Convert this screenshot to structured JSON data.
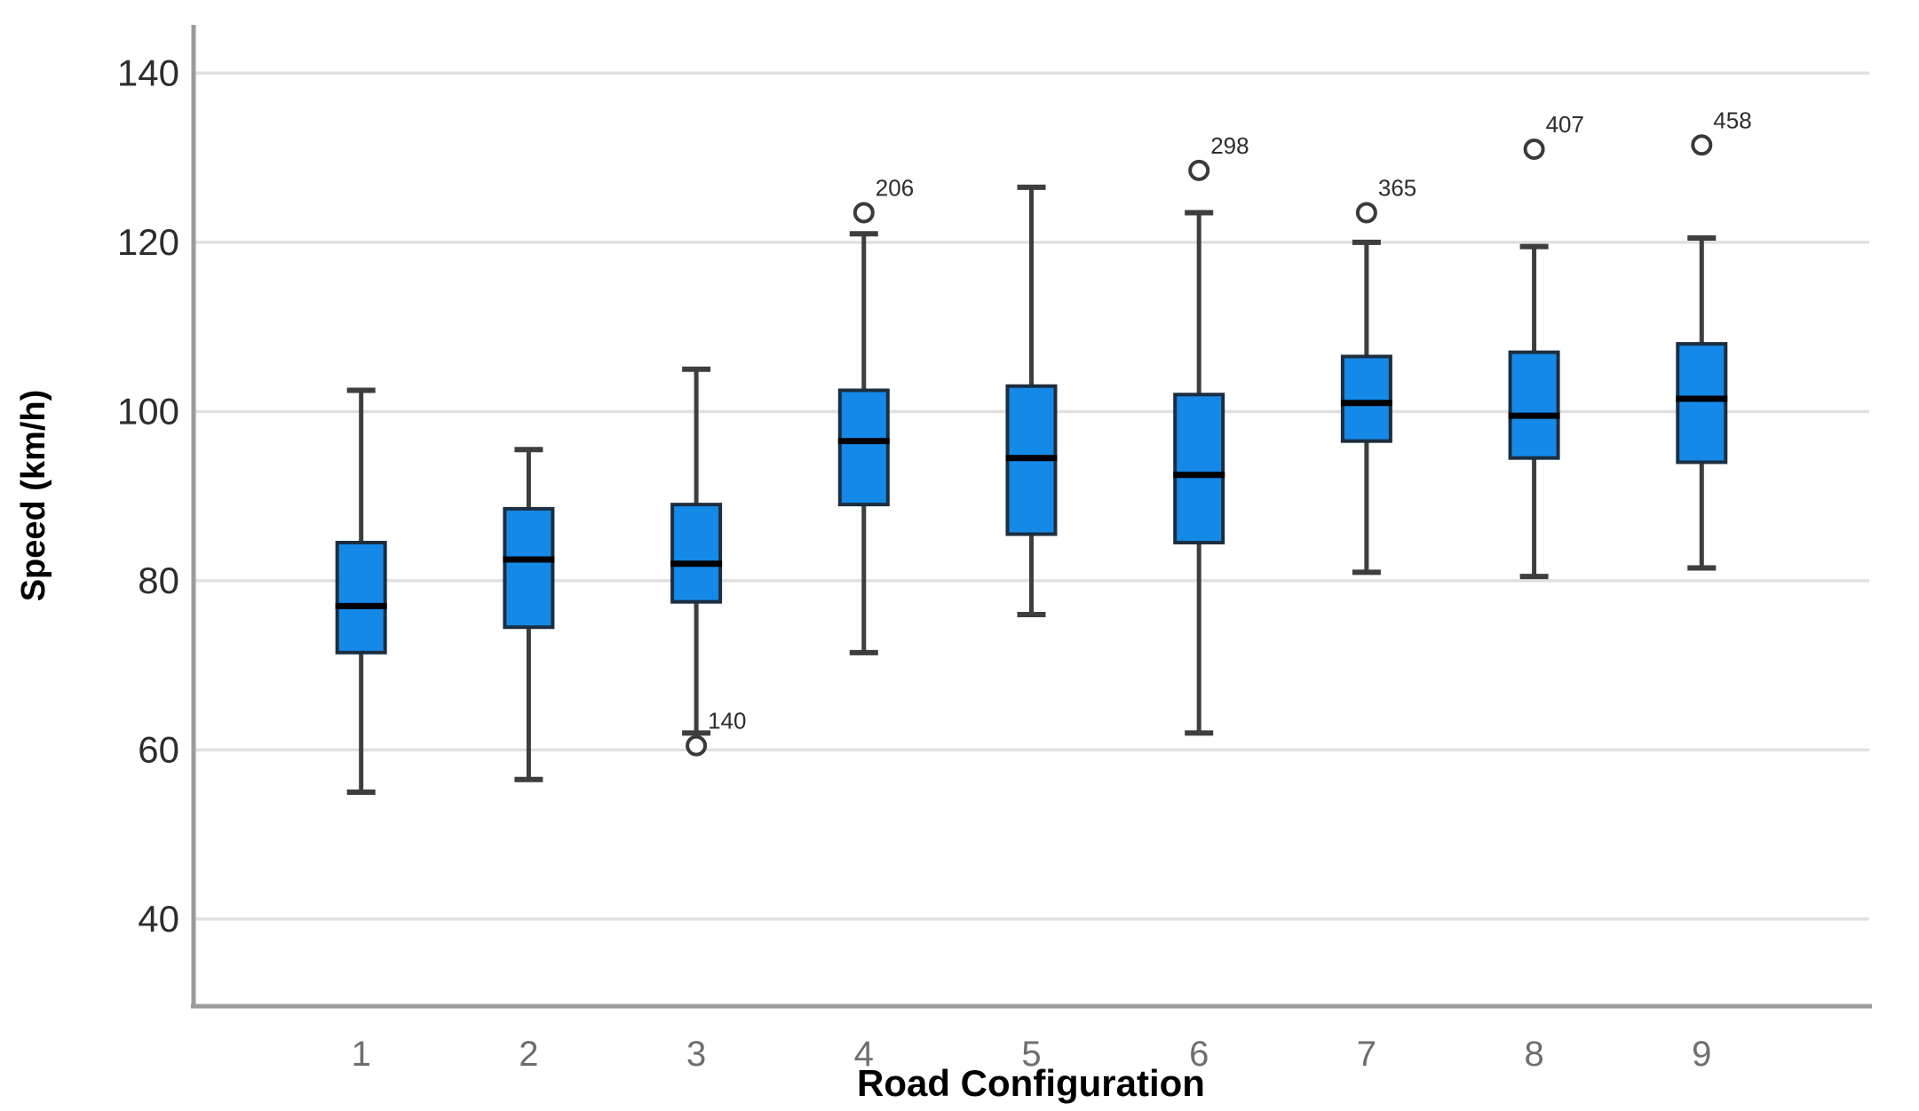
{
  "chart_data": {
    "type": "boxplot",
    "title": "",
    "xlabel": "Road Configuration",
    "ylabel": "Speed (km/h)",
    "yticks": [
      "140",
      "120",
      "100",
      "80",
      "60",
      "40"
    ],
    "ytick_values": [
      140,
      120,
      100,
      80,
      60,
      40
    ],
    "ylim": [
      29.7,
      145.7
    ],
    "grid": "horizontal",
    "legend": "none",
    "categories": [
      "1",
      "2",
      "3",
      "4",
      "5",
      "6",
      "7",
      "8",
      "9"
    ],
    "boxes": [
      {
        "category": "1",
        "whisker_low": 55,
        "q1": 71.5,
        "median": 77,
        "q3": 84.5,
        "whisker_high": 102.5,
        "outliers": []
      },
      {
        "category": "2",
        "whisker_low": 56.5,
        "q1": 74.5,
        "median": 82.5,
        "q3": 88.5,
        "whisker_high": 95.5,
        "outliers": []
      },
      {
        "category": "3",
        "whisker_low": 62,
        "q1": 77.5,
        "median": 82,
        "q3": 89,
        "whisker_high": 105,
        "outliers": [
          {
            "value": 60.5,
            "label": "140"
          }
        ]
      },
      {
        "category": "4",
        "whisker_low": 71.5,
        "q1": 89,
        "median": 96.5,
        "q3": 102.5,
        "whisker_high": 121,
        "outliers": [
          {
            "value": 123.5,
            "label": "206"
          }
        ]
      },
      {
        "category": "5",
        "whisker_low": 76,
        "q1": 85.5,
        "median": 94.5,
        "q3": 103,
        "whisker_high": 126.5,
        "outliers": []
      },
      {
        "category": "6",
        "whisker_low": 62,
        "q1": 84.5,
        "median": 92.5,
        "q3": 102,
        "whisker_high": 123.5,
        "outliers": [
          {
            "value": 128.5,
            "label": "298"
          }
        ]
      },
      {
        "category": "7",
        "whisker_low": 81,
        "q1": 96.5,
        "median": 101,
        "q3": 106.5,
        "whisker_high": 120,
        "outliers": [
          {
            "value": 123.5,
            "label": "365"
          }
        ]
      },
      {
        "category": "8",
        "whisker_low": 80.5,
        "q1": 94.5,
        "median": 99.5,
        "q3": 107,
        "whisker_high": 119.5,
        "outliers": [
          {
            "value": 131,
            "label": "407"
          }
        ]
      },
      {
        "category": "9",
        "whisker_low": 81.5,
        "q1": 94,
        "median": 101.5,
        "q3": 108,
        "whisker_high": 120.5,
        "outliers": [
          {
            "value": 131.5,
            "label": "458"
          }
        ]
      }
    ],
    "colors": {
      "box_fill": "#1589e8",
      "box_border": "#1c2e40",
      "median": "#000000",
      "whisker": "#3e3e3e",
      "gridline": "#e0e0e0",
      "axis_line": "#9b9b9b",
      "y_tick_text": "#2d2d2d",
      "x_tick_text": "#6e6e6e",
      "outlier_ring": "#3a3a3a",
      "outlier_label_text": "#2d2d2d",
      "title_text": "#000000",
      "background": "#ffffff"
    }
  }
}
